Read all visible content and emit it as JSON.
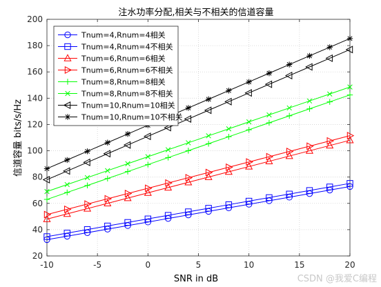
{
  "watermark": "CSDN @我爱C编程",
  "chart_data": {
    "type": "line",
    "title": "注水功率分配,相关与不相关的信道容量",
    "xlabel": "SNR in dB",
    "ylabel": "信道容量 bits/s/Hz",
    "xlim": [
      -10,
      20
    ],
    "ylim": [
      20,
      200
    ],
    "xticks": [
      -10,
      -5,
      0,
      5,
      10,
      15,
      20
    ],
    "yticks": [
      20,
      40,
      60,
      80,
      100,
      120,
      140,
      160,
      180,
      200
    ],
    "grid": true,
    "legend_position": "top-left",
    "x": [
      -10,
      -8,
      -6,
      -4,
      -2,
      0,
      2,
      4,
      6,
      8,
      10,
      12,
      14,
      16,
      18,
      20
    ],
    "series": [
      {
        "name": "Tnum=4,Rnum=4相关",
        "color": "#0000ff",
        "marker": "circle",
        "values": [
          32.4,
          35.0,
          37.7,
          40.4,
          43.1,
          45.8,
          48.5,
          51.2,
          53.9,
          56.6,
          59.3,
          62.0,
          64.7,
          67.4,
          70.1,
          72.8
        ]
      },
      {
        "name": "Tnum=4,Rnum=4不相关",
        "color": "#0000ff",
        "marker": "square",
        "values": [
          34.7,
          37.4,
          40.1,
          42.8,
          45.5,
          48.2,
          50.9,
          53.6,
          56.3,
          59.0,
          61.7,
          64.4,
          67.1,
          69.8,
          72.5,
          75.2
        ]
      },
      {
        "name": "Tnum=6,Rnum=6相关",
        "color": "#ff0000",
        "marker": "triangle-up",
        "values": [
          48.0,
          52.0,
          56.0,
          60.0,
          64.0,
          68.0,
          72.0,
          76.0,
          80.0,
          84.0,
          88.0,
          92.0,
          96.0,
          100.0,
          104.0,
          108.0
        ]
      },
      {
        "name": "Tnum=6,Rnum=6不相关",
        "color": "#ff0000",
        "marker": "triangle-right",
        "values": [
          51.5,
          55.5,
          59.5,
          63.5,
          67.5,
          71.5,
          75.5,
          79.5,
          83.5,
          87.5,
          91.5,
          95.5,
          99.5,
          103.5,
          107.5,
          111.5
        ]
      },
      {
        "name": "Tnum=8,Rnum=8相关",
        "color": "#00ff00",
        "marker": "plus",
        "values": [
          63.0,
          68.3,
          73.6,
          78.9,
          84.2,
          89.5,
          94.8,
          100.1,
          105.4,
          110.7,
          116.0,
          121.3,
          126.6,
          131.9,
          137.2,
          142.5
        ]
      },
      {
        "name": "Tnum=8,Rnum=8不相关",
        "color": "#00ff00",
        "marker": "x",
        "values": [
          69.0,
          74.3,
          79.6,
          84.9,
          90.2,
          95.5,
          100.8,
          106.1,
          111.4,
          116.7,
          122.0,
          127.3,
          132.6,
          137.9,
          143.2,
          148.5
        ]
      },
      {
        "name": "Tnum=10,Rnum=10相关",
        "color": "#000000",
        "marker": "triangle-left",
        "values": [
          78.0,
          84.6,
          91.2,
          97.8,
          104.4,
          111.0,
          117.6,
          124.2,
          130.8,
          137.4,
          144.0,
          150.6,
          157.2,
          163.8,
          170.4,
          177.0
        ]
      },
      {
        "name": "Tnum=10,Rnum=10不相关",
        "color": "#000000",
        "marker": "asterisk",
        "values": [
          86.4,
          93.0,
          99.6,
          106.2,
          112.8,
          119.4,
          126.0,
          132.6,
          139.2,
          145.8,
          152.4,
          159.0,
          165.6,
          172.2,
          178.8,
          185.4
        ]
      }
    ]
  }
}
